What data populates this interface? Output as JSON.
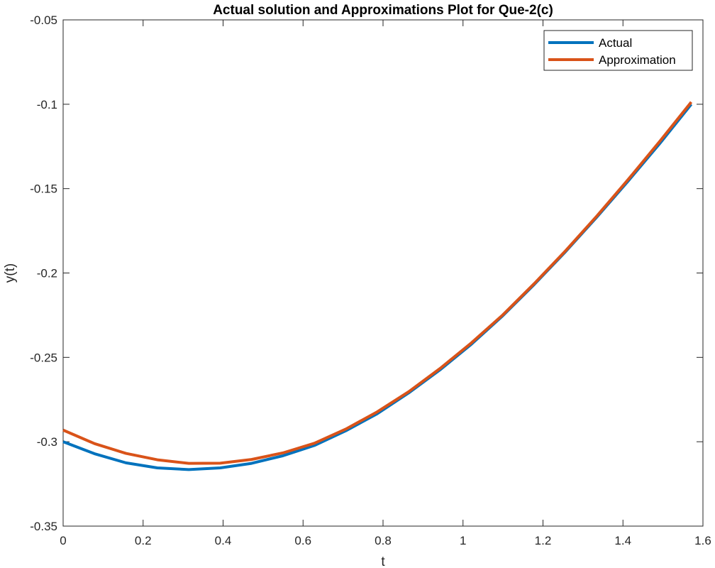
{
  "chart_data": {
    "type": "line",
    "title": "Actual solution and Approximations Plot for Que-2(c)",
    "xlabel": "t",
    "ylabel": "y(t)",
    "xlim": [
      0,
      1.6
    ],
    "ylim": [
      -0.35,
      -0.05
    ],
    "xticks": [
      "0",
      "0.2",
      "0.4",
      "0.6",
      "0.8",
      "1",
      "1.2",
      "1.4",
      "1.6"
    ],
    "yticks": [
      "-0.05",
      "-0.1",
      "-0.15",
      "-0.2",
      "-0.25",
      "-0.3",
      "-0.35"
    ],
    "grid": false,
    "legend_position": "top-right",
    "x": [
      0,
      0.0785,
      0.1571,
      0.2356,
      0.3142,
      0.3927,
      0.4712,
      0.5498,
      0.6283,
      0.7069,
      0.7854,
      0.8639,
      0.9425,
      1.021,
      1.0996,
      1.1781,
      1.2566,
      1.3352,
      1.4137,
      1.4923,
      1.5708
    ],
    "series": [
      {
        "name": "Actual",
        "color": "#0072BD",
        "values": [
          -0.3,
          -0.3071,
          -0.3125,
          -0.3155,
          -0.3165,
          -0.3155,
          -0.3128,
          -0.3083,
          -0.3022,
          -0.2935,
          -0.2834,
          -0.2711,
          -0.2574,
          -0.2422,
          -0.2253,
          -0.2068,
          -0.1873,
          -0.1667,
          -0.1453,
          -0.1232,
          -0.1
        ]
      },
      {
        "name": "Approximation",
        "color": "#D95319",
        "values": [
          -0.2931,
          -0.3011,
          -0.3069,
          -0.3107,
          -0.3128,
          -0.3127,
          -0.3105,
          -0.3066,
          -0.3009,
          -0.2925,
          -0.2823,
          -0.2704,
          -0.2566,
          -0.2414,
          -0.2248,
          -0.2063,
          -0.1868,
          -0.1661,
          -0.1444,
          -0.1219,
          -0.0987
        ]
      }
    ]
  }
}
